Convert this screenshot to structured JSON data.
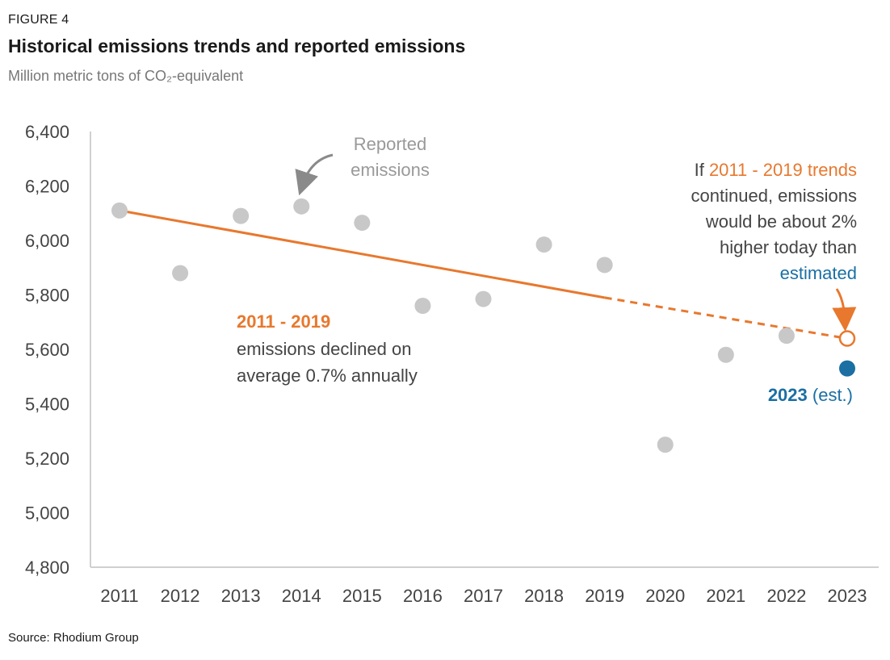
{
  "figure_label": "FIGURE 4",
  "title": "Historical emissions trends and reported emissions",
  "subtitle": "Million metric tons of CO₂-equivalent",
  "source": "Source: Rhodium Group",
  "colors": {
    "reported": "#c8c8c8",
    "trend": "#e8782e",
    "estimate": "#1b6fa3",
    "axis": "#d0d0d0",
    "text": "#444444",
    "annotation_gray": "#999999"
  },
  "chart_data": {
    "type": "scatter",
    "x": [
      2011,
      2012,
      2013,
      2014,
      2015,
      2016,
      2017,
      2018,
      2019,
      2020,
      2021,
      2022
    ],
    "categories": [
      "2011",
      "2012",
      "2013",
      "2014",
      "2015",
      "2016",
      "2017",
      "2018",
      "2019",
      "2020",
      "2021",
      "2022",
      "2023"
    ],
    "y_ticks": [
      "6,400",
      "6,200",
      "6,000",
      "5,800",
      "5,600",
      "5,400",
      "5,200",
      "5,000",
      "4,800"
    ],
    "ylim": [
      4800,
      6400
    ],
    "grid": false,
    "series": [
      {
        "name": "Reported emissions",
        "x": [
          2011,
          2012,
          2013,
          2014,
          2015,
          2016,
          2017,
          2018,
          2019,
          2020,
          2021,
          2022
        ],
        "values": [
          6110,
          5880,
          6090,
          6125,
          6065,
          5760,
          5785,
          5985,
          5910,
          5250,
          5580,
          5650
        ]
      },
      {
        "name": "2023 (est.)",
        "x": [
          2023
        ],
        "values": [
          5530
        ]
      }
    ],
    "trend": {
      "solid_from": [
        2011,
        6110
      ],
      "solid_to": [
        2019,
        5790
      ],
      "dashed_to": [
        2023,
        5640
      ],
      "projection_point": [
        2023,
        5640
      ]
    },
    "annotations": {
      "reported_line1": "Reported",
      "reported_line2": "emissions",
      "trend_heading": "2011 - 2019",
      "trend_line1": "emissions declined on",
      "trend_line2": "average 0.7% annually",
      "proj_line1_prefix": "If ",
      "proj_line1_highlight": "2011 - 2019 trends",
      "proj_line2": "continued, emissions",
      "proj_line3": "would be about 2%",
      "proj_line4": "higher today than",
      "proj_line5": "estimated",
      "est_year": "2023",
      "est_suffix": " (est.)"
    }
  }
}
